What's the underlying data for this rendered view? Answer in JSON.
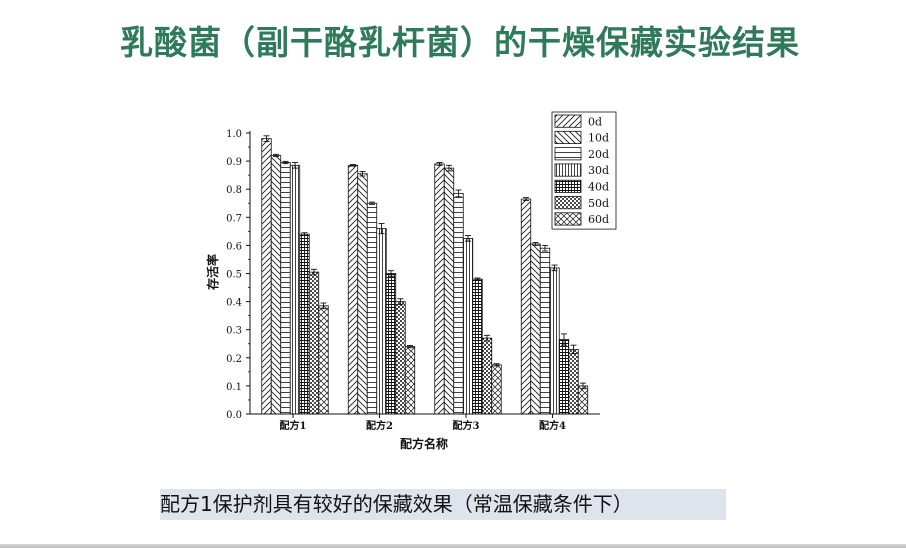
{
  "slide": {
    "title": "乳酸菌（副干酪乳杆菌）的干燥保藏实验结果",
    "caption": "配方1保护剂具有较好的保藏效果（常温保藏条件下）",
    "title_color": "#2f7a5a",
    "caption_bg": "#dfe3ee"
  },
  "chart_data": {
    "type": "bar",
    "title": "",
    "xlabel": "配方名称",
    "ylabel": "存活率",
    "ylim": [
      0,
      1.0
    ],
    "yticks": [
      "0.0",
      "0.1",
      "0.2",
      "0.3",
      "0.4",
      "0.5",
      "0.6",
      "0.7",
      "0.8",
      "0.9",
      "1.0"
    ],
    "categories": [
      "配方1",
      "配方2",
      "配方3",
      "配方4"
    ],
    "legend_position": "top-right",
    "series": [
      {
        "name": "0d",
        "pattern": "diag-right",
        "values": [
          0.98,
          0.885,
          0.89,
          0.765
        ],
        "errors": [
          0.01,
          0.003,
          0.005,
          0.005
        ]
      },
      {
        "name": "10d",
        "pattern": "diag-left",
        "values": [
          0.92,
          0.855,
          0.875,
          0.605
        ],
        "errors": [
          0.004,
          0.008,
          0.01,
          0.005
        ]
      },
      {
        "name": "20d",
        "pattern": "horizontal",
        "values": [
          0.895,
          0.75,
          0.785,
          0.59
        ],
        "errors": [
          0.004,
          0.004,
          0.012,
          0.01
        ]
      },
      {
        "name": "30d",
        "pattern": "vertical",
        "values": [
          0.885,
          0.66,
          0.625,
          0.52
        ],
        "errors": [
          0.01,
          0.018,
          0.01,
          0.01
        ]
      },
      {
        "name": "40d",
        "pattern": "grid",
        "values": [
          0.64,
          0.5,
          0.48,
          0.265
        ],
        "errors": [
          0.005,
          0.01,
          0.004,
          0.02
        ]
      },
      {
        "name": "50d",
        "pattern": "dots",
        "values": [
          0.505,
          0.4,
          0.27,
          0.23
        ],
        "errors": [
          0.01,
          0.01,
          0.01,
          0.015
        ]
      },
      {
        "name": "60d",
        "pattern": "crosshatch",
        "values": [
          0.385,
          0.24,
          0.175,
          0.1
        ],
        "errors": [
          0.01,
          0.004,
          0.004,
          0.01
        ]
      }
    ]
  }
}
